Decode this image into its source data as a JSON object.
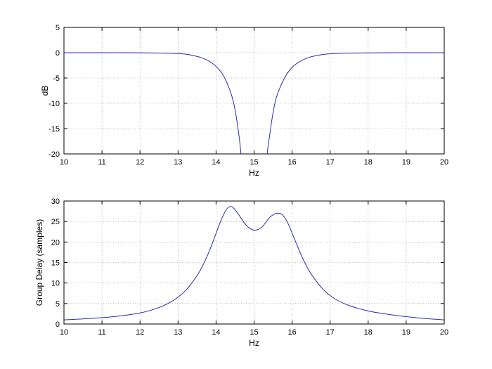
{
  "chart_data": [
    {
      "type": "line",
      "xlabel": "Hz",
      "ylabel": "dB",
      "xlim": [
        10,
        20
      ],
      "ylim": [
        -20,
        5
      ],
      "xticks": [
        "10",
        "11",
        "12",
        "13",
        "14",
        "15",
        "16",
        "17",
        "18",
        "19",
        "20"
      ],
      "yticks": [
        "5",
        "0",
        "-5",
        "-10",
        "-15",
        "-20"
      ],
      "grid": true,
      "color": "#2a2ab4",
      "series": [
        {
          "x": [
            10,
            11,
            12,
            12.5,
            12.8,
            13,
            13.2,
            13.4,
            13.6,
            13.8,
            14,
            14.2,
            14.4,
            14.5,
            14.6,
            14.65,
            14.7,
            15.3,
            15.35,
            15.4,
            15.5,
            15.6,
            15.8,
            16,
            16.2,
            16.4,
            16.6,
            16.8,
            17,
            17.2,
            17.5,
            18,
            19,
            20
          ],
          "y": [
            0,
            0,
            -0.02,
            -0.06,
            -0.1,
            -0.18,
            -0.3,
            -0.55,
            -0.95,
            -1.6,
            -2.7,
            -4.6,
            -8.2,
            -11.3,
            -16.2,
            -19.5,
            -22,
            -22,
            -19.5,
            -16.8,
            -11.8,
            -8.5,
            -5.0,
            -2.9,
            -1.75,
            -1.05,
            -0.62,
            -0.36,
            -0.22,
            -0.13,
            -0.07,
            -0.03,
            0,
            0
          ]
        }
      ]
    },
    {
      "type": "line",
      "xlabel": "Hz",
      "ylabel": "Group Delay (samples)",
      "xlim": [
        10,
        20
      ],
      "ylim": [
        0,
        30
      ],
      "xticks": [
        "10",
        "11",
        "12",
        "13",
        "14",
        "15",
        "16",
        "17",
        "18",
        "19",
        "20"
      ],
      "yticks": [
        "30",
        "25",
        "20",
        "15",
        "10",
        "5",
        "0"
      ],
      "grid": true,
      "color": "#2a2ab4",
      "series": [
        {
          "x": [
            10,
            10.5,
            11,
            11.5,
            12,
            12.3,
            12.6,
            12.9,
            13.2,
            13.5,
            13.7,
            13.9,
            14.1,
            14.25,
            14.35,
            14.45,
            14.6,
            14.8,
            15,
            15.2,
            15.4,
            15.55,
            15.65,
            15.75,
            15.9,
            16.1,
            16.3,
            16.5,
            16.8,
            17.1,
            17.5,
            18,
            18.5,
            19,
            19.5,
            20
          ],
          "y": [
            1.0,
            1.25,
            1.55,
            2.0,
            2.7,
            3.4,
            4.4,
            5.9,
            8.2,
            11.8,
            15.2,
            19.6,
            24.6,
            27.6,
            28.6,
            28.4,
            26.6,
            24.0,
            22.9,
            23.6,
            25.9,
            26.9,
            27.0,
            26.6,
            24.4,
            19.9,
            15.6,
            12.2,
            8.6,
            6.3,
            4.5,
            3.2,
            2.4,
            1.8,
            1.35,
            1.0
          ]
        }
      ]
    }
  ]
}
